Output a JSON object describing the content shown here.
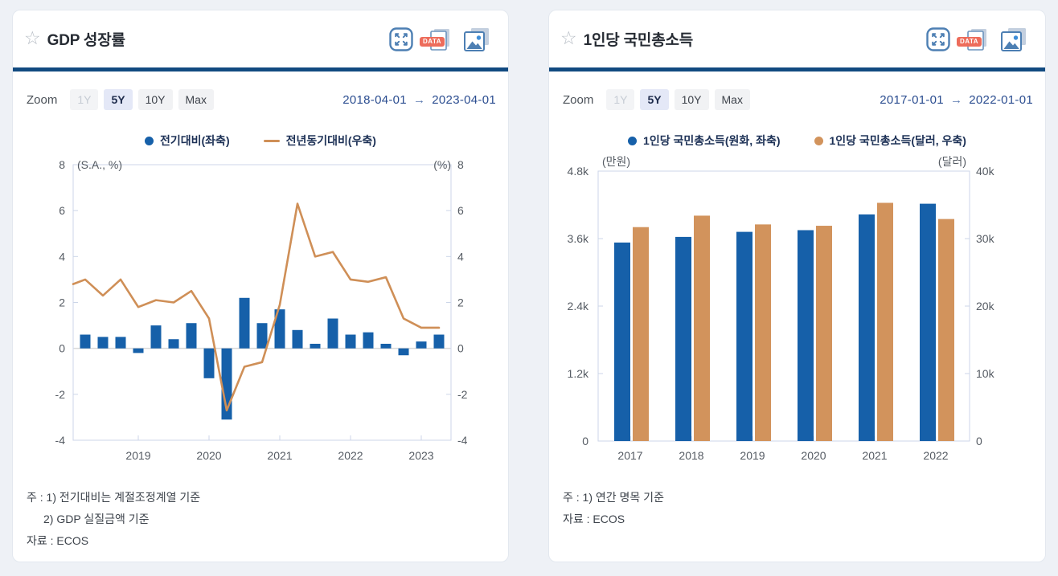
{
  "colors": {
    "page_bg": "#eef1f6",
    "panel_bg": "#ffffff",
    "header_divider_navy": "#114a80",
    "title_text": "#262b33",
    "date_text": "#2b4d90",
    "bar_blue": "#1660a9",
    "line_orange": "#cf8f57",
    "bar_orange": "#d2935c",
    "axis_text": "#555b63",
    "legend_text": "#1d3156",
    "note_text": "#3d434b",
    "plot_border": "#ccd6e8",
    "zero_line": "#d9d9d9",
    "icon_blue": "#4d7fb3",
    "data_badge_red": "#ed6c5b",
    "active_button_bg": "#e4e8f7"
  },
  "panels": [
    {
      "star": "☆",
      "title": "GDP 성장률",
      "data_badge": "DATA",
      "toolbar": {
        "zoom_label": "Zoom",
        "buttons": [
          {
            "label": "1Y",
            "state": "disabled"
          },
          {
            "label": "5Y",
            "state": "active"
          },
          {
            "label": "10Y",
            "state": "normal"
          },
          {
            "label": "Max",
            "state": "normal"
          }
        ],
        "date_from": "2018-04-01",
        "date_arrow": "→",
        "date_to": "2023-04-01"
      },
      "legend": [
        {
          "marker": "circle-blue",
          "label": "전기대비(좌축)"
        },
        {
          "marker": "line-orange",
          "label": "전년동기대비(우축)"
        }
      ],
      "notes": [
        "주 : 1) 전기대비는 계절조정계열 기준",
        "2) GDP 실질금액 기준"
      ],
      "source": "자료 : ECOS"
    },
    {
      "star": "☆",
      "title": "1인당 국민총소득",
      "data_badge": "DATA",
      "toolbar": {
        "zoom_label": "Zoom",
        "buttons": [
          {
            "label": "1Y",
            "state": "disabled"
          },
          {
            "label": "5Y",
            "state": "active"
          },
          {
            "label": "10Y",
            "state": "normal"
          },
          {
            "label": "Max",
            "state": "normal"
          }
        ],
        "date_from": "2017-01-01",
        "date_arrow": "→",
        "date_to": "2022-01-01"
      },
      "legend": [
        {
          "marker": "circle-blue",
          "label": "1인당 국민총소득(원화, 좌축)"
        },
        {
          "marker": "circle-orange",
          "label": "1인당 국민총소득(달러, 우축)"
        }
      ],
      "notes": [
        "주 : 1) 연간 명목 기준"
      ],
      "source": "자료 : ECOS"
    }
  ],
  "chart_data": [
    {
      "type": "bar",
      "subtype": "bar-plus-line-dual-axis",
      "title": "GDP 성장률",
      "x": [
        "2018Q2",
        "2018Q3",
        "2018Q4",
        "2019Q1",
        "2019Q2",
        "2019Q3",
        "2019Q4",
        "2020Q1",
        "2020Q2",
        "2020Q3",
        "2020Q4",
        "2021Q1",
        "2021Q2",
        "2021Q3",
        "2021Q4",
        "2022Q1",
        "2022Q2",
        "2022Q3",
        "2022Q4",
        "2023Q1",
        "2023Q2"
      ],
      "series": [
        {
          "name": "전기대비(좌축)",
          "type": "bar",
          "axis": "left",
          "color": "#1660a9",
          "values": [
            0.6,
            0.5,
            0.5,
            -0.2,
            1.0,
            0.4,
            1.1,
            -1.3,
            -3.1,
            2.2,
            1.1,
            1.7,
            0.8,
            0.2,
            1.3,
            0.6,
            0.7,
            0.2,
            -0.3,
            0.3,
            0.6
          ]
        },
        {
          "name": "전년동기대비(우축)",
          "type": "line",
          "axis": "right",
          "color": "#cf8f57",
          "edge_start_value": 2.8,
          "values": [
            3.0,
            2.3,
            3.0,
            1.8,
            2.1,
            2.0,
            2.5,
            1.3,
            -2.7,
            -0.8,
            -0.6,
            1.9,
            6.3,
            4.0,
            4.2,
            3.0,
            2.9,
            3.1,
            1.3,
            0.9,
            0.9
          ]
        }
      ],
      "left_axis": {
        "label": "(S.A., %)",
        "min": -4,
        "max": 8,
        "ticks": [
          {
            "label": "8",
            "value": 8
          },
          {
            "label": "6",
            "value": 6
          },
          {
            "label": "4",
            "value": 4
          },
          {
            "label": "2",
            "value": 2
          },
          {
            "label": "0",
            "value": 0
          },
          {
            "label": "-2",
            "value": -2
          },
          {
            "label": "-4",
            "value": -4
          }
        ]
      },
      "right_axis": {
        "label": "(%)",
        "min": -4,
        "max": 8,
        "ticks": [
          {
            "label": "8",
            "value": 8
          },
          {
            "label": "6",
            "value": 6
          },
          {
            "label": "4",
            "value": 4
          },
          {
            "label": "2",
            "value": 2
          },
          {
            "label": "0",
            "value": 0
          },
          {
            "label": "-2",
            "value": -2
          },
          {
            "label": "-4",
            "value": -4
          }
        ]
      },
      "x_ticks": [
        {
          "label": "2019",
          "index": 3
        },
        {
          "label": "2020",
          "index": 7
        },
        {
          "label": "2021",
          "index": 11
        },
        {
          "label": "2022",
          "index": 15
        },
        {
          "label": "2023",
          "index": 19
        }
      ],
      "zero_line": true,
      "grid": false,
      "legend_position": "top-center"
    },
    {
      "type": "bar",
      "subtype": "grouped-bars-dual-axis",
      "title": "1인당 국민총소득",
      "categories": [
        "2017",
        "2018",
        "2019",
        "2020",
        "2021",
        "2022"
      ],
      "series": [
        {
          "name": "1인당 국민총소득(원화, 좌축)",
          "axis": "left",
          "color": "#1660a9",
          "unit": "만원",
          "values": [
            3530,
            3630,
            3720,
            3750,
            4030,
            4220
          ]
        },
        {
          "name": "1인당 국민총소득(달러, 우축)",
          "axis": "right",
          "color": "#d2935c",
          "unit": "달러",
          "values": [
            31700,
            33400,
            32100,
            31900,
            35300,
            32900
          ]
        }
      ],
      "left_axis": {
        "label": "(만원)",
        "min": 0,
        "max": 4800,
        "ticks": [
          {
            "label": "4.8k",
            "value": 4800
          },
          {
            "label": "3.6k",
            "value": 3600
          },
          {
            "label": "2.4k",
            "value": 2400
          },
          {
            "label": "1.2k",
            "value": 1200
          },
          {
            "label": "0",
            "value": 0
          }
        ]
      },
      "right_axis": {
        "label": "(달러)",
        "min": 0,
        "max": 40000,
        "ticks": [
          {
            "label": "40k",
            "value": 40000
          },
          {
            "label": "30k",
            "value": 30000
          },
          {
            "label": "20k",
            "value": 20000
          },
          {
            "label": "10k",
            "value": 10000
          },
          {
            "label": "0",
            "value": 0
          }
        ]
      },
      "grid": false,
      "legend_position": "top-center"
    }
  ]
}
